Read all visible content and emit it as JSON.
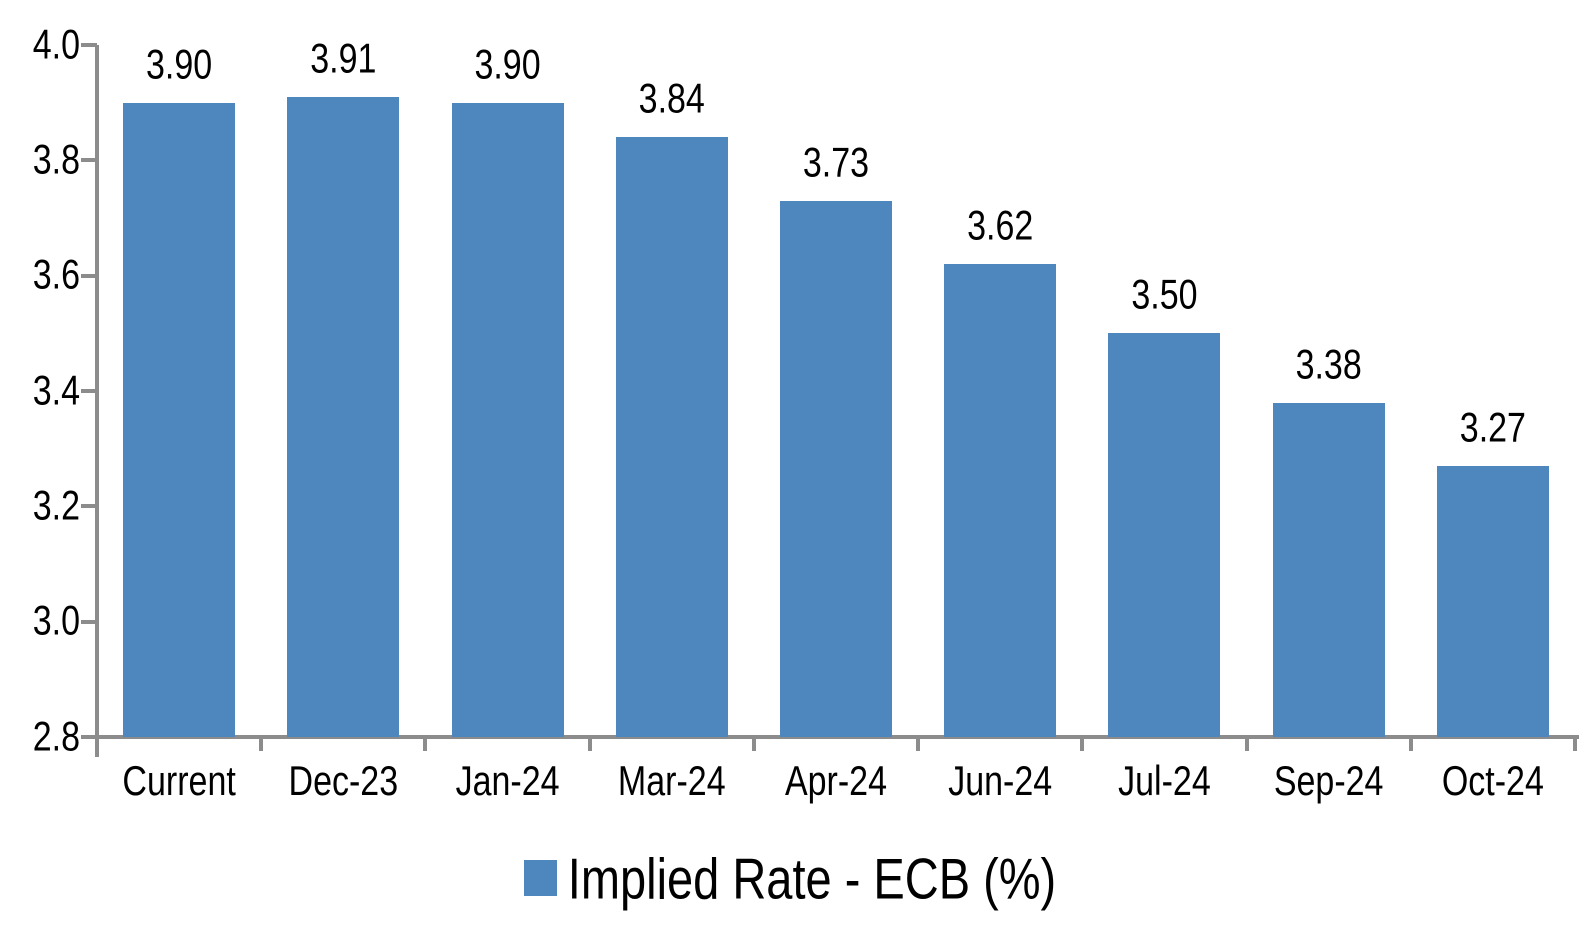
{
  "chart_data": {
    "type": "bar",
    "title": "",
    "xlabel": "",
    "ylabel": "",
    "legend": "Implied Rate - ECB (%)",
    "legend_position": "bottom",
    "categories": [
      "Current",
      "Dec-23",
      "Jan-24",
      "Mar-24",
      "Apr-24",
      "Jun-24",
      "Jul-24",
      "Sep-24",
      "Oct-24"
    ],
    "values": [
      3.9,
      3.91,
      3.9,
      3.84,
      3.73,
      3.62,
      3.5,
      3.38,
      3.27
    ],
    "value_labels": [
      "3.90",
      "3.91",
      "3.90",
      "3.84",
      "3.73",
      "3.62",
      "3.50",
      "3.38",
      "3.27"
    ],
    "ylim": [
      2.8,
      4.0
    ],
    "yticks": [
      2.8,
      3.0,
      3.2,
      3.4,
      3.6,
      3.8,
      4.0
    ],
    "ytick_labels": [
      "2.8",
      "3.0",
      "3.2",
      "3.4",
      "3.6",
      "3.8",
      "4.0"
    ],
    "grid": false,
    "colors": {
      "bar": "#4D87BE",
      "axis": "#8C8C8C",
      "text": "#000000",
      "background": "#FFFFFF"
    }
  }
}
